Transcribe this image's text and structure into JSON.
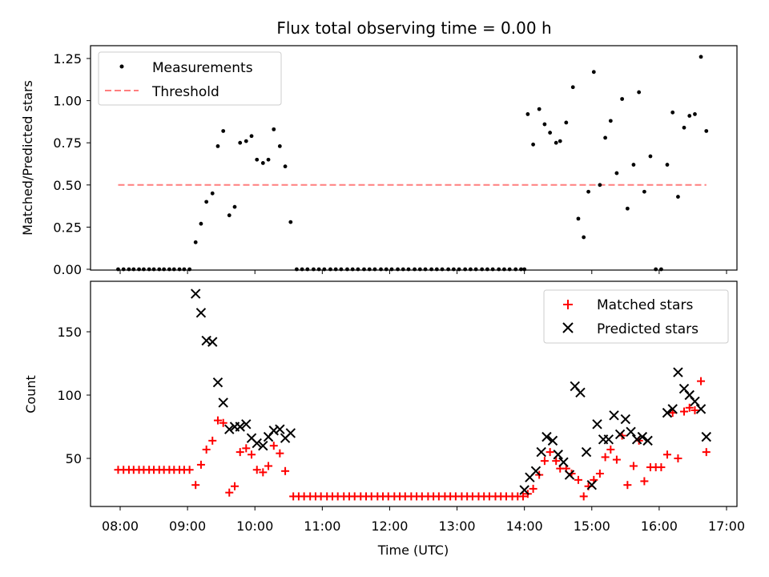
{
  "chart_data": [
    {
      "type": "scatter",
      "title": "Flux total observing time = 0.00 h",
      "ylabel": "Matched/Predicted stars",
      "xlabel": "",
      "xlim": [
        7.8,
        17.15
      ],
      "ylim": [
        0,
        1.3
      ],
      "yticks": [
        0.0,
        0.25,
        0.5,
        0.75,
        1.0,
        1.25
      ],
      "ytick_labels": [
        "0.00",
        "0.25",
        "0.50",
        "0.75",
        "1.00",
        "1.25"
      ],
      "legend": [
        "Measurements",
        "Threshold"
      ],
      "legend_position": "top-left",
      "threshold": {
        "name": "Threshold",
        "y": 0.5,
        "x": [
          7.97,
          16.7
        ],
        "color": "#ff7f7f"
      },
      "series": [
        {
          "name": "Measurements",
          "color": "#000000",
          "points": [
            [
              7.97,
              0
            ],
            [
              8.05,
              0
            ],
            [
              8.13,
              0
            ],
            [
              8.2,
              0
            ],
            [
              8.28,
              0
            ],
            [
              8.35,
              0
            ],
            [
              8.43,
              0
            ],
            [
              8.5,
              0
            ],
            [
              8.58,
              0
            ],
            [
              8.65,
              0
            ],
            [
              8.73,
              0
            ],
            [
              8.8,
              0
            ],
            [
              8.88,
              0
            ],
            [
              8.95,
              0
            ],
            [
              9.03,
              0
            ],
            [
              9.12,
              0.16
            ],
            [
              9.2,
              0.27
            ],
            [
              9.28,
              0.4
            ],
            [
              9.37,
              0.45
            ],
            [
              9.45,
              0.73
            ],
            [
              9.53,
              0.82
            ],
            [
              9.62,
              0.32
            ],
            [
              9.7,
              0.37
            ],
            [
              9.78,
              0.75
            ],
            [
              9.87,
              0.76
            ],
            [
              9.95,
              0.79
            ],
            [
              10.03,
              0.65
            ],
            [
              10.12,
              0.63
            ],
            [
              10.2,
              0.65
            ],
            [
              10.28,
              0.83
            ],
            [
              10.37,
              0.73
            ],
            [
              10.45,
              0.61
            ],
            [
              10.53,
              0.28
            ],
            [
              10.62,
              0
            ],
            [
              10.7,
              0
            ],
            [
              10.78,
              0
            ],
            [
              10.87,
              0
            ],
            [
              10.95,
              0
            ],
            [
              11.03,
              0
            ],
            [
              11.12,
              0
            ],
            [
              11.2,
              0
            ],
            [
              11.28,
              0
            ],
            [
              11.37,
              0
            ],
            [
              11.45,
              0
            ],
            [
              11.53,
              0
            ],
            [
              11.62,
              0
            ],
            [
              11.7,
              0
            ],
            [
              11.78,
              0
            ],
            [
              11.87,
              0
            ],
            [
              11.95,
              0
            ],
            [
              12.03,
              0
            ],
            [
              12.12,
              0
            ],
            [
              12.2,
              0
            ],
            [
              12.28,
              0
            ],
            [
              12.37,
              0
            ],
            [
              12.45,
              0
            ],
            [
              12.53,
              0
            ],
            [
              12.62,
              0
            ],
            [
              12.7,
              0
            ],
            [
              12.78,
              0
            ],
            [
              12.87,
              0
            ],
            [
              12.95,
              0
            ],
            [
              13.03,
              0
            ],
            [
              13.12,
              0
            ],
            [
              13.2,
              0
            ],
            [
              13.28,
              0
            ],
            [
              13.37,
              0
            ],
            [
              13.45,
              0
            ],
            [
              13.53,
              0
            ],
            [
              13.62,
              0
            ],
            [
              13.7,
              0
            ],
            [
              13.78,
              0
            ],
            [
              13.87,
              0
            ],
            [
              13.95,
              0
            ],
            [
              14.0,
              0
            ],
            [
              14.05,
              0.92
            ],
            [
              14.13,
              0.74
            ],
            [
              14.22,
              0.95
            ],
            [
              14.3,
              0.86
            ],
            [
              14.38,
              0.81
            ],
            [
              14.47,
              0.75
            ],
            [
              14.53,
              0.76
            ],
            [
              14.62,
              0.87
            ],
            [
              14.72,
              1.08
            ],
            [
              14.8,
              0.3
            ],
            [
              14.88,
              0.19
            ],
            [
              14.95,
              0.46
            ],
            [
              15.03,
              1.17
            ],
            [
              15.12,
              0.5
            ],
            [
              15.2,
              0.78
            ],
            [
              15.28,
              0.88
            ],
            [
              15.37,
              0.57
            ],
            [
              15.45,
              1.01
            ],
            [
              15.53,
              0.36
            ],
            [
              15.62,
              0.62
            ],
            [
              15.7,
              1.05
            ],
            [
              15.78,
              0.46
            ],
            [
              15.87,
              0.67
            ],
            [
              15.95,
              0
            ],
            [
              16.03,
              0
            ],
            [
              16.12,
              0.62
            ],
            [
              16.2,
              0.93
            ],
            [
              16.28,
              0.43
            ],
            [
              16.37,
              0.84
            ],
            [
              16.45,
              0.91
            ],
            [
              16.53,
              0.92
            ],
            [
              16.62,
              1.26
            ],
            [
              16.7,
              0.82
            ]
          ]
        }
      ]
    },
    {
      "type": "scatter",
      "title": "",
      "ylabel": "Count",
      "xlabel": "Time (UTC)",
      "xlim": [
        7.55,
        17.15
      ],
      "ylim": [
        12,
        190
      ],
      "yticks": [
        50,
        100,
        150
      ],
      "ytick_labels": [
        "50",
        "100",
        "150"
      ],
      "xticks": [
        8,
        9,
        10,
        11,
        12,
        13,
        14,
        15,
        16,
        17
      ],
      "xtick_labels": [
        "08:00",
        "09:00",
        "10:00",
        "11:00",
        "12:00",
        "13:00",
        "14:00",
        "15:00",
        "16:00",
        "17:00"
      ],
      "legend": [
        "Matched stars",
        "Predicted stars"
      ],
      "legend_position": "top-right",
      "series": [
        {
          "name": "Matched stars",
          "marker": "plus",
          "color": "#ff0000",
          "points": [
            [
              7.97,
              41
            ],
            [
              8.05,
              41
            ],
            [
              8.13,
              41
            ],
            [
              8.2,
              41
            ],
            [
              8.28,
              41
            ],
            [
              8.35,
              41
            ],
            [
              8.43,
              41
            ],
            [
              8.5,
              41
            ],
            [
              8.58,
              41
            ],
            [
              8.65,
              41
            ],
            [
              8.73,
              41
            ],
            [
              8.8,
              41
            ],
            [
              8.88,
              41
            ],
            [
              8.95,
              41
            ],
            [
              9.03,
              41
            ],
            [
              9.12,
              29
            ],
            [
              9.2,
              45
            ],
            [
              9.28,
              57
            ],
            [
              9.37,
              64
            ],
            [
              9.45,
              80
            ],
            [
              9.53,
              78
            ],
            [
              9.62,
              23
            ],
            [
              9.7,
              28
            ],
            [
              9.78,
              55
            ],
            [
              9.87,
              58
            ],
            [
              9.95,
              53
            ],
            [
              10.03,
              41
            ],
            [
              10.12,
              39
            ],
            [
              10.2,
              44
            ],
            [
              10.28,
              60
            ],
            [
              10.37,
              54
            ],
            [
              10.45,
              40
            ],
            [
              10.57,
              20
            ],
            [
              10.65,
              20
            ],
            [
              10.73,
              20
            ],
            [
              10.82,
              20
            ],
            [
              10.9,
              20
            ],
            [
              10.98,
              20
            ],
            [
              11.07,
              20
            ],
            [
              11.15,
              20
            ],
            [
              11.23,
              20
            ],
            [
              11.32,
              20
            ],
            [
              11.4,
              20
            ],
            [
              11.48,
              20
            ],
            [
              11.57,
              20
            ],
            [
              11.65,
              20
            ],
            [
              11.73,
              20
            ],
            [
              11.82,
              20
            ],
            [
              11.9,
              20
            ],
            [
              11.98,
              20
            ],
            [
              12.07,
              20
            ],
            [
              12.15,
              20
            ],
            [
              12.23,
              20
            ],
            [
              12.32,
              20
            ],
            [
              12.4,
              20
            ],
            [
              12.48,
              20
            ],
            [
              12.57,
              20
            ],
            [
              12.65,
              20
            ],
            [
              12.73,
              20
            ],
            [
              12.82,
              20
            ],
            [
              12.9,
              20
            ],
            [
              12.98,
              20
            ],
            [
              13.07,
              20
            ],
            [
              13.15,
              20
            ],
            [
              13.23,
              20
            ],
            [
              13.32,
              20
            ],
            [
              13.4,
              20
            ],
            [
              13.48,
              20
            ],
            [
              13.57,
              20
            ],
            [
              13.65,
              20
            ],
            [
              13.73,
              20
            ],
            [
              13.82,
              20
            ],
            [
              13.9,
              20
            ],
            [
              13.98,
              20
            ],
            [
              14.05,
              22
            ],
            [
              14.13,
              26
            ],
            [
              14.22,
              37
            ],
            [
              14.3,
              48
            ],
            [
              14.38,
              55
            ],
            [
              14.47,
              48
            ],
            [
              14.53,
              42
            ],
            [
              14.62,
              42
            ],
            [
              14.7,
              38
            ],
            [
              14.8,
              33
            ],
            [
              14.88,
              20
            ],
            [
              14.95,
              28
            ],
            [
              15.03,
              33
            ],
            [
              15.12,
              38
            ],
            [
              15.2,
              51
            ],
            [
              15.28,
              57
            ],
            [
              15.37,
              49
            ],
            [
              15.45,
              68
            ],
            [
              15.53,
              29
            ],
            [
              15.62,
              44
            ],
            [
              15.7,
              64
            ],
            [
              15.78,
              32
            ],
            [
              15.87,
              43
            ],
            [
              15.95,
              43
            ],
            [
              16.03,
              43
            ],
            [
              16.12,
              53
            ],
            [
              16.2,
              86
            ],
            [
              16.28,
              50
            ],
            [
              16.37,
              87
            ],
            [
              16.45,
              90
            ],
            [
              16.53,
              88
            ],
            [
              16.62,
              111
            ],
            [
              16.7,
              55
            ]
          ]
        },
        {
          "name": "Predicted stars",
          "marker": "x",
          "color": "#000000",
          "points": [
            [
              9.12,
              180
            ],
            [
              9.2,
              165
            ],
            [
              9.28,
              143
            ],
            [
              9.37,
              142
            ],
            [
              9.45,
              110
            ],
            [
              9.53,
              94
            ],
            [
              9.62,
              73
            ],
            [
              9.7,
              75
            ],
            [
              9.78,
              75
            ],
            [
              9.87,
              77
            ],
            [
              9.95,
              66
            ],
            [
              10.03,
              62
            ],
            [
              10.12,
              60
            ],
            [
              10.2,
              67
            ],
            [
              10.28,
              72
            ],
            [
              10.37,
              73
            ],
            [
              10.45,
              66
            ],
            [
              10.53,
              70
            ],
            [
              14.0,
              25
            ],
            [
              14.08,
              35
            ],
            [
              14.17,
              40
            ],
            [
              14.25,
              55
            ],
            [
              14.33,
              67
            ],
            [
              14.42,
              64
            ],
            [
              14.5,
              53
            ],
            [
              14.58,
              47
            ],
            [
              14.67,
              37
            ],
            [
              14.75,
              107
            ],
            [
              14.83,
              102
            ],
            [
              14.92,
              55
            ],
            [
              15.0,
              29
            ],
            [
              15.08,
              77
            ],
            [
              15.17,
              65
            ],
            [
              15.25,
              65
            ],
            [
              15.33,
              84
            ],
            [
              15.42,
              69
            ],
            [
              15.5,
              81
            ],
            [
              15.58,
              71
            ],
            [
              15.67,
              65
            ],
            [
              15.75,
              67
            ],
            [
              15.83,
              64
            ],
            [
              16.12,
              86
            ],
            [
              16.2,
              89
            ],
            [
              16.28,
              118
            ],
            [
              16.37,
              105
            ],
            [
              16.45,
              100
            ],
            [
              16.53,
              95
            ],
            [
              16.62,
              89
            ],
            [
              16.7,
              67
            ]
          ]
        }
      ]
    }
  ]
}
